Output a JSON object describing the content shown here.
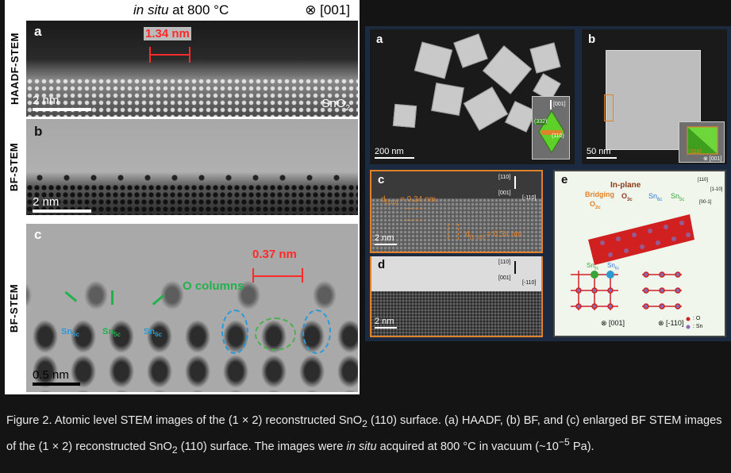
{
  "left_figure": {
    "condition_text": "in situ",
    "condition_rest": "at 800 °C",
    "zone_axis": "⊗ [001]",
    "panels": [
      {
        "letter": "a",
        "mode": "HAADF-STEM",
        "scale": "2 nm"
      },
      {
        "letter": "b",
        "mode": "BF-STEM",
        "scale": "2 nm"
      },
      {
        "letter": "c",
        "mode": "BF-STEM",
        "scale": "0.5 nm"
      }
    ],
    "measure_a": "1.34 nm",
    "material": "SnO",
    "material_sub": "2",
    "measure_c": "0.37 nm",
    "o_columns": "O columns",
    "sn_labels": [
      {
        "base": "Sn",
        "sub": "6c",
        "color": "#2a9ad6"
      },
      {
        "base": "Sn",
        "sub": "5c",
        "color": "#22b14c"
      },
      {
        "base": "Sn",
        "sub": "6c",
        "color": "#2a9ad6"
      }
    ]
  },
  "right_figure": {
    "a": {
      "letter": "a",
      "scale": "200 nm",
      "inset_top": "[001]",
      "inset_left": "(332)",
      "inset_face": "(110)"
    },
    "b": {
      "letter": "b",
      "scale": "50 nm",
      "inset_face": "(110)",
      "inset_axis": "⊗ [001]"
    },
    "c": {
      "letter": "c",
      "d1_base": "d",
      "d1_sub": "(110)",
      "d1_val": " = 0.34 nm",
      "d2_base": "d",
      "d2_sub": "(1-10)",
      "d2_val": " = 0.34 nm",
      "axis_up": "[110]",
      "axis_in": "[001]",
      "axis_right": "[-110]",
      "scale": "2 nm"
    },
    "d": {
      "letter": "d",
      "axis_up": "[110]",
      "axis_in": "[001]",
      "axis_right": "[-110]",
      "scale": "2 nm"
    },
    "e": {
      "letter": "e",
      "in_plane": "In-plane",
      "bridging": "Bridging",
      "o2c": "O",
      "o2c_sub": "2c",
      "o3c": "O",
      "o3c_sub": "3c",
      "sn6c": "Sn",
      "sn6c_sub": "6c",
      "sn5c": "Sn",
      "sn5c_sub": "5c",
      "ax_110": "[110]",
      "ax_1m10": "[1-10]",
      "ax_00m1": "[00-1]",
      "view1": "⊗ [001]",
      "view2": "⊗ [-110]",
      "legend_o": ": O",
      "legend_sn": ": Sn",
      "lower_sn6c": "Sn",
      "lower_sn6c_sub": "6c",
      "lower_sn5c": "Sn",
      "lower_sn5c_sub": "5c"
    }
  },
  "caption": {
    "p1": "Figure 2. Atomic level STEM images of the (1 × 2) reconstructed SnO",
    "p1_sub": "2",
    "p2": " (110) surface. (a) HAADF, (b) BF, and (c) enlarged BF STEM images of the (1 × 2) reconstructed SnO",
    "p2_sub": "2",
    "p3": " (110) surface. The images were ",
    "p3_italic": "in situ",
    "p4": " acquired at 800 °C in vacuum (~10",
    "p4_sup": "−5",
    "p5": " Pa)."
  }
}
